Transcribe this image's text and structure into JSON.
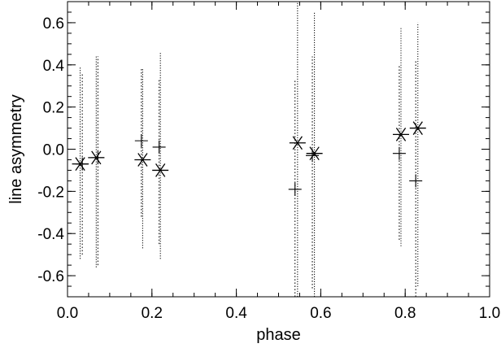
{
  "chart_data": {
    "type": "scatter",
    "title": "",
    "xlabel": "phase",
    "ylabel": "line asymmetry",
    "xlim": [
      0.0,
      1.0
    ],
    "ylim": [
      -0.7,
      0.7
    ],
    "xticks": [
      0.0,
      0.2,
      0.4,
      0.6,
      0.8,
      1.0
    ],
    "yticks": [
      -0.6,
      -0.4,
      -0.2,
      0.0,
      0.2,
      0.4,
      0.6
    ],
    "xtick_labels": [
      "0.0",
      "0.2",
      "0.4",
      "0.6",
      "0.8",
      "1.0"
    ],
    "ytick_labels": [
      "-0.6",
      "-0.4",
      "-0.2",
      "0.0",
      "0.2",
      "0.4",
      "0.6"
    ],
    "grid": false,
    "legend": "none",
    "series": [
      {
        "marker": "asterisk",
        "line_style": "dotted",
        "x": [
          0.03,
          0.068,
          0.178,
          0.22,
          0.545,
          0.585,
          0.79,
          0.83
        ],
        "y": [
          -0.07,
          -0.04,
          -0.05,
          -0.1,
          0.03,
          -0.02,
          0.07,
          0.1
        ],
        "err_low": [
          -0.52,
          -0.56,
          -0.47,
          -0.52,
          -0.7,
          -0.7,
          -0.46,
          -0.65
        ],
        "err_high": [
          0.39,
          0.44,
          0.38,
          0.46,
          0.7,
          0.65,
          0.58,
          0.6
        ]
      },
      {
        "marker": "plus",
        "line_style": "dotted",
        "x": [
          0.035,
          0.072,
          0.175,
          0.217,
          0.539,
          0.58,
          0.786,
          0.825
        ],
        "y": [
          -0.07,
          -0.04,
          0.04,
          0.01,
          -0.19,
          -0.03,
          -0.02,
          -0.15
        ],
        "err_low": [
          -0.5,
          -0.55,
          -0.32,
          -0.45,
          -0.7,
          -0.66,
          -0.43,
          -0.7
        ],
        "err_high": [
          0.36,
          0.44,
          0.38,
          0.33,
          0.33,
          0.44,
          0.4,
          0.42
        ]
      }
    ]
  }
}
